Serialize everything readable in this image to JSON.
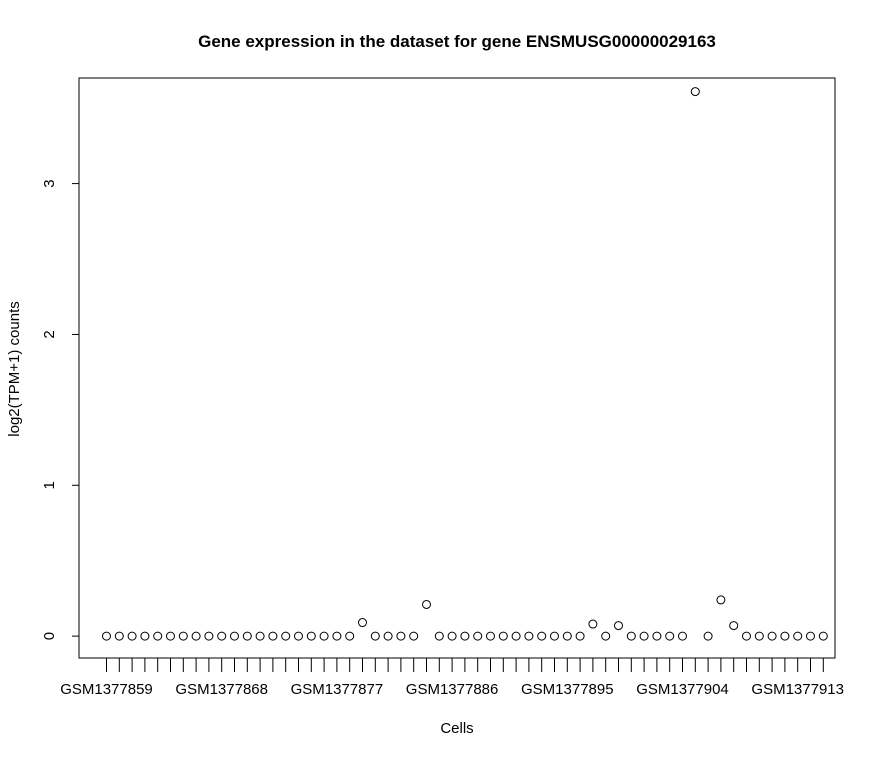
{
  "chart_data": {
    "type": "scatter",
    "title": "Gene expression in the dataset for gene ENSMUSG00000029163",
    "xlabel": "Cells",
    "ylabel": "log2(TPM+1) counts",
    "ylim": [
      -0.145,
      3.7
    ],
    "y_ticks": [
      0,
      1,
      2,
      3
    ],
    "grid": false,
    "x_tick_labels": [
      "GSM1377859",
      "GSM1377868",
      "GSM1377877",
      "GSM1377886",
      "GSM1377895",
      "GSM1377904",
      "GSM1377913"
    ],
    "x_tick_label_every": 9,
    "values": [
      0,
      0,
      0,
      0,
      0,
      0,
      0,
      0,
      0,
      0,
      0,
      0,
      0,
      0,
      0,
      0,
      0,
      0,
      0,
      0,
      0.09,
      0,
      0,
      0,
      0,
      0.21,
      0,
      0,
      0,
      0,
      0,
      0,
      0,
      0,
      0,
      0,
      0,
      0,
      0.08,
      0,
      0.07,
      0,
      0,
      0,
      0,
      0,
      3.61,
      0,
      0.24,
      0.07,
      0,
      0,
      0,
      0,
      0,
      0,
      0
    ]
  }
}
